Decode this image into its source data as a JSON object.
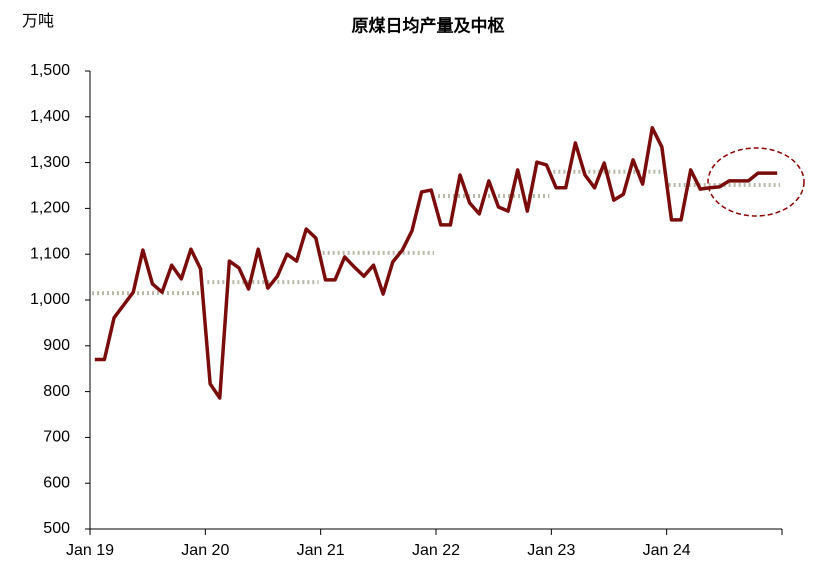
{
  "chart_data": {
    "type": "line",
    "title": "原煤日均产量及中枢",
    "y_unit": "万吨",
    "categories": [
      "Jan 19",
      null,
      null,
      null,
      null,
      null,
      null,
      null,
      null,
      null,
      null,
      null,
      "Jan 20",
      null,
      null,
      null,
      null,
      null,
      null,
      null,
      null,
      null,
      null,
      null,
      "Jan 21",
      null,
      null,
      null,
      null,
      null,
      null,
      null,
      null,
      null,
      null,
      null,
      "Jan 22",
      null,
      null,
      null,
      null,
      null,
      null,
      null,
      null,
      null,
      null,
      null,
      "Jan 23",
      null,
      null,
      null,
      null,
      null,
      null,
      null,
      null,
      null,
      null,
      null,
      "Jan 24",
      null,
      null,
      null,
      null,
      null,
      null,
      null,
      null,
      null,
      null,
      null
    ],
    "series": [
      {
        "color": "#7b0c0c",
        "values": [
          870,
          870,
          961,
          989,
          1017,
          1109,
          1035,
          1017,
          1076,
          1046,
          1111,
          1068,
          817,
          786,
          1085,
          1070,
          1024,
          1111,
          1026,
          1052,
          1100,
          1085,
          1155,
          1135,
          1044,
          1044,
          1094,
          1072,
          1052,
          1076,
          1013,
          1083,
          1109,
          1151,
          1236,
          1240,
          1164,
          1164,
          1273,
          1212,
          1188,
          1260,
          1203,
          1194,
          1284,
          1194,
          1301,
          1295,
          1245,
          1245,
          1343,
          1273,
          1245,
          1299,
          1218,
          1231,
          1306,
          1253,
          1376,
          1334,
          1175,
          1175,
          1284,
          1242,
          1245,
          1247,
          1260,
          1260,
          1260,
          1277,
          1277,
          1277
        ]
      }
    ],
    "center_levels": {
      "color": "#b8b8a8",
      "values": [
        1015,
        1039,
        1103,
        1227,
        1280,
        1251
      ]
    },
    "ylim": [
      500,
      1500
    ],
    "yticks": [
      500,
      600,
      700,
      800,
      900,
      {
        "value": 1000,
        "label": "1,000"
      },
      {
        "value": 1100,
        "label": "1,100"
      },
      {
        "value": 1200,
        "label": "1,200"
      },
      {
        "value": 1300,
        "label": "1,300"
      },
      {
        "value": 1400,
        "label": "1,400"
      },
      {
        "value": 1500,
        "label": "1,500"
      }
    ],
    "grid": false
  }
}
